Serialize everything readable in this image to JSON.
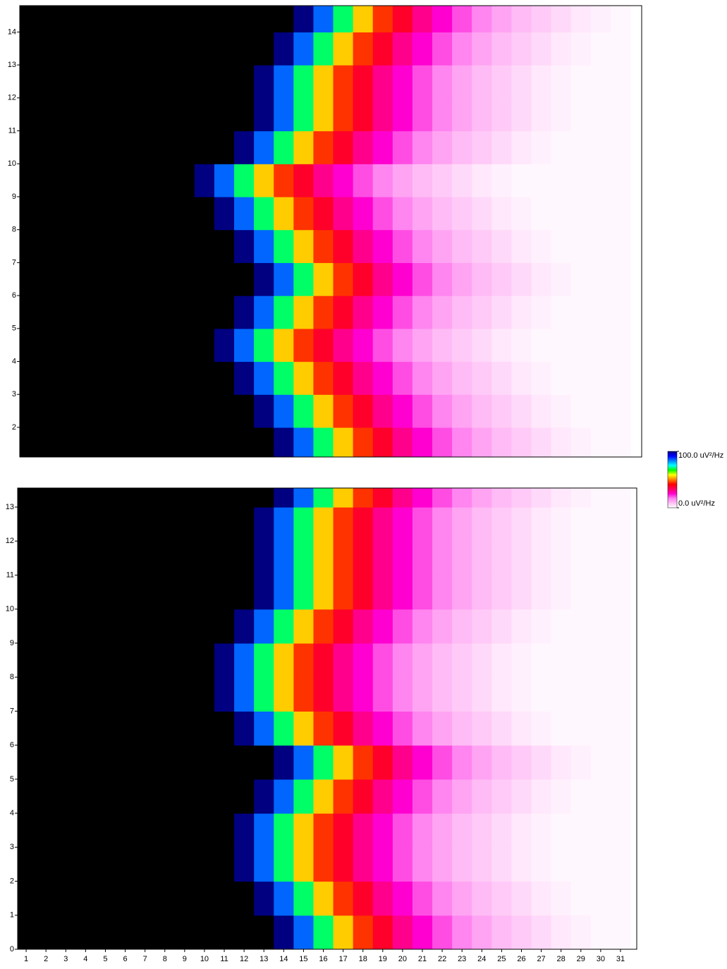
{
  "chart_data": [
    {
      "type": "heatmap",
      "x": [
        1,
        2,
        3,
        4,
        5,
        6,
        7,
        8,
        9,
        10,
        11,
        12,
        13,
        14,
        15,
        16,
        17,
        18,
        19,
        20,
        21,
        22,
        23,
        24,
        25,
        26,
        27,
        28,
        29,
        30,
        31
      ],
      "y": [
        1.5,
        2.5,
        3.5,
        4.5,
        5.5,
        6.5,
        7.5,
        8.5,
        9.5,
        10.5,
        11.5,
        12.5,
        13.5,
        14.5
      ],
      "z": [
        [
          150,
          150,
          150,
          150,
          150,
          150,
          150,
          150,
          150,
          150,
          150,
          150,
          150,
          100,
          85,
          70,
          55,
          45,
          38,
          30,
          25,
          20,
          16,
          12,
          9,
          7,
          5,
          3,
          2,
          1,
          1
        ],
        [
          150,
          150,
          150,
          150,
          150,
          150,
          150,
          150,
          150,
          150,
          150,
          150,
          100,
          85,
          70,
          55,
          45,
          38,
          30,
          25,
          20,
          16,
          12,
          9,
          7,
          5,
          3,
          2,
          1,
          1,
          1
        ],
        [
          150,
          150,
          150,
          150,
          150,
          150,
          150,
          150,
          150,
          150,
          150,
          100,
          85,
          70,
          55,
          45,
          38,
          30,
          25,
          20,
          16,
          12,
          9,
          7,
          5,
          3,
          2,
          1,
          1,
          1,
          1
        ],
        [
          150,
          150,
          150,
          150,
          150,
          150,
          150,
          150,
          150,
          150,
          100,
          85,
          70,
          55,
          45,
          38,
          30,
          25,
          20,
          16,
          12,
          9,
          7,
          5,
          3,
          2,
          1,
          1,
          1,
          1,
          1
        ],
        [
          150,
          150,
          150,
          150,
          150,
          150,
          150,
          150,
          150,
          150,
          150,
          100,
          85,
          70,
          55,
          45,
          38,
          30,
          25,
          20,
          16,
          12,
          9,
          7,
          5,
          3,
          2,
          1,
          1,
          1,
          1
        ],
        [
          150,
          150,
          150,
          150,
          150,
          150,
          150,
          150,
          150,
          150,
          150,
          150,
          100,
          85,
          70,
          55,
          45,
          38,
          30,
          25,
          20,
          16,
          12,
          9,
          7,
          5,
          3,
          2,
          1,
          1,
          1
        ],
        [
          150,
          150,
          150,
          150,
          150,
          150,
          150,
          150,
          150,
          150,
          150,
          100,
          85,
          70,
          55,
          45,
          38,
          30,
          25,
          20,
          16,
          12,
          9,
          7,
          5,
          3,
          2,
          1,
          1,
          1,
          1
        ],
        [
          150,
          150,
          150,
          150,
          150,
          150,
          150,
          150,
          150,
          150,
          100,
          85,
          70,
          55,
          45,
          38,
          30,
          25,
          20,
          16,
          12,
          9,
          7,
          5,
          3,
          2,
          1,
          1,
          1,
          1,
          1
        ],
        [
          150,
          150,
          150,
          150,
          150,
          150,
          150,
          150,
          150,
          100,
          85,
          70,
          55,
          45,
          38,
          30,
          25,
          20,
          16,
          12,
          9,
          7,
          5,
          3,
          2,
          1,
          1,
          1,
          1,
          1,
          1
        ],
        [
          150,
          150,
          150,
          150,
          150,
          150,
          150,
          150,
          150,
          150,
          150,
          100,
          85,
          70,
          55,
          45,
          38,
          30,
          25,
          20,
          16,
          12,
          9,
          7,
          5,
          3,
          2,
          1,
          1,
          1,
          1
        ],
        [
          150,
          150,
          150,
          150,
          150,
          150,
          150,
          150,
          150,
          150,
          150,
          150,
          100,
          85,
          70,
          55,
          45,
          38,
          30,
          25,
          20,
          16,
          12,
          9,
          7,
          5,
          3,
          2,
          1,
          1,
          1
        ],
        [
          150,
          150,
          150,
          150,
          150,
          150,
          150,
          150,
          150,
          150,
          150,
          150,
          100,
          85,
          70,
          55,
          45,
          38,
          30,
          25,
          20,
          16,
          12,
          9,
          7,
          5,
          3,
          2,
          1,
          1,
          1
        ],
        [
          150,
          150,
          150,
          150,
          150,
          150,
          150,
          150,
          150,
          150,
          150,
          150,
          150,
          100,
          85,
          70,
          55,
          45,
          38,
          30,
          25,
          20,
          16,
          12,
          9,
          7,
          5,
          3,
          2,
          1,
          1
        ],
        [
          150,
          150,
          150,
          150,
          150,
          150,
          150,
          150,
          150,
          150,
          150,
          150,
          150,
          150,
          100,
          85,
          70,
          55,
          45,
          38,
          30,
          25,
          20,
          16,
          12,
          9,
          7,
          5,
          3,
          2,
          1
        ]
      ],
      "xlim": [
        0.68,
        32.07
      ],
      "ylim": [
        1.1,
        14.8
      ],
      "yticks": [
        2,
        3,
        4,
        5,
        6,
        7,
        8,
        9,
        10,
        11,
        12,
        13,
        14
      ]
    },
    {
      "type": "heatmap",
      "x": [
        1,
        2,
        3,
        4,
        5,
        6,
        7,
        8,
        9,
        10,
        11,
        12,
        13,
        14,
        15,
        16,
        17,
        18,
        19,
        20,
        21,
        22,
        23,
        24,
        25,
        26,
        27,
        28,
        29,
        30,
        31
      ],
      "y": [
        0.5,
        1.5,
        2.5,
        3.5,
        4.5,
        5.5,
        6.5,
        7.5,
        8.5,
        9.5,
        10.5,
        11.5,
        12.5,
        13.5
      ],
      "z": [
        [
          150,
          150,
          150,
          150,
          150,
          150,
          150,
          150,
          150,
          150,
          150,
          150,
          150,
          100,
          85,
          70,
          55,
          45,
          38,
          30,
          25,
          20,
          16,
          12,
          9,
          7,
          5,
          3,
          2,
          1,
          1
        ],
        [
          150,
          150,
          150,
          150,
          150,
          150,
          150,
          150,
          150,
          150,
          150,
          150,
          100,
          85,
          70,
          55,
          45,
          38,
          30,
          25,
          20,
          16,
          12,
          9,
          7,
          5,
          3,
          2,
          1,
          1,
          1
        ],
        [
          150,
          150,
          150,
          150,
          150,
          150,
          150,
          150,
          150,
          150,
          150,
          100,
          85,
          70,
          55,
          45,
          38,
          30,
          25,
          20,
          16,
          12,
          9,
          7,
          5,
          3,
          2,
          1,
          1,
          1,
          1
        ],
        [
          150,
          150,
          150,
          150,
          150,
          150,
          150,
          150,
          150,
          150,
          150,
          100,
          85,
          70,
          55,
          45,
          38,
          30,
          25,
          20,
          16,
          12,
          9,
          7,
          5,
          3,
          2,
          1,
          1,
          1,
          1
        ],
        [
          150,
          150,
          150,
          150,
          150,
          150,
          150,
          150,
          150,
          150,
          150,
          150,
          100,
          85,
          70,
          55,
          45,
          38,
          30,
          25,
          20,
          16,
          12,
          9,
          7,
          5,
          3,
          2,
          1,
          1,
          1
        ],
        [
          150,
          150,
          150,
          150,
          150,
          150,
          150,
          150,
          150,
          150,
          150,
          150,
          150,
          100,
          85,
          70,
          55,
          45,
          38,
          30,
          25,
          20,
          16,
          12,
          9,
          7,
          5,
          3,
          2,
          1,
          1
        ],
        [
          150,
          150,
          150,
          150,
          150,
          150,
          150,
          150,
          150,
          150,
          150,
          100,
          85,
          70,
          55,
          45,
          38,
          30,
          25,
          20,
          16,
          12,
          9,
          7,
          5,
          3,
          2,
          1,
          1,
          1,
          1
        ],
        [
          150,
          150,
          150,
          150,
          150,
          150,
          150,
          150,
          150,
          150,
          100,
          85,
          70,
          55,
          45,
          38,
          30,
          25,
          20,
          16,
          12,
          9,
          7,
          5,
          3,
          2,
          1,
          1,
          1,
          1,
          1
        ],
        [
          150,
          150,
          150,
          150,
          150,
          150,
          150,
          150,
          150,
          150,
          100,
          85,
          70,
          55,
          45,
          38,
          30,
          25,
          20,
          16,
          12,
          9,
          7,
          5,
          3,
          2,
          1,
          1,
          1,
          1,
          1
        ],
        [
          150,
          150,
          150,
          150,
          150,
          150,
          150,
          150,
          150,
          150,
          150,
          100,
          85,
          70,
          55,
          45,
          38,
          30,
          25,
          20,
          16,
          12,
          9,
          7,
          5,
          3,
          2,
          1,
          1,
          1,
          1
        ],
        [
          150,
          150,
          150,
          150,
          150,
          150,
          150,
          150,
          150,
          150,
          150,
          150,
          100,
          85,
          70,
          55,
          45,
          38,
          30,
          25,
          20,
          16,
          12,
          9,
          7,
          5,
          3,
          2,
          1,
          1,
          1
        ],
        [
          150,
          150,
          150,
          150,
          150,
          150,
          150,
          150,
          150,
          150,
          150,
          150,
          100,
          85,
          70,
          55,
          45,
          38,
          30,
          25,
          20,
          16,
          12,
          9,
          7,
          5,
          3,
          2,
          1,
          1,
          1
        ],
        [
          150,
          150,
          150,
          150,
          150,
          150,
          150,
          150,
          150,
          150,
          150,
          150,
          100,
          85,
          70,
          55,
          45,
          38,
          30,
          25,
          20,
          16,
          12,
          9,
          7,
          5,
          3,
          2,
          1,
          1,
          1
        ],
        [
          150,
          150,
          150,
          150,
          150,
          150,
          150,
          150,
          150,
          150,
          150,
          150,
          150,
          100,
          85,
          70,
          55,
          45,
          38,
          30,
          25,
          20,
          16,
          12,
          9,
          7,
          5,
          3,
          2,
          1,
          1
        ]
      ],
      "xlim": [
        0.57,
        31.82
      ],
      "ylim": [
        0,
        13.56
      ],
      "yticks": [
        0,
        1,
        2,
        3,
        4,
        5,
        6,
        7,
        8,
        9,
        10,
        11,
        12,
        13
      ],
      "xticks": [
        1,
        2,
        3,
        4,
        5,
        6,
        7,
        8,
        9,
        10,
        11,
        12,
        13,
        14,
        15,
        16,
        17,
        18,
        19,
        20,
        21,
        22,
        23,
        24,
        25,
        26,
        27,
        28,
        29,
        30,
        31
      ]
    }
  ],
  "colorbar": {
    "zlim": [
      0,
      100
    ],
    "zticks": [
      {
        "value": 0,
        "label": "0.0 uV²/Hz"
      },
      {
        "value": 100,
        "label": "100.0 uV²/Hz"
      }
    ],
    "colorscale": [
      "#ffffff",
      "#ffc0f5",
      "#ff80f0",
      "#ff00d0",
      "#ff0060",
      "#ff0000",
      "#ff8000",
      "#ffff00",
      "#00ff00",
      "#00ffff",
      "#0080ff",
      "#0000ff",
      "#000080"
    ],
    "overflow_color": "#000000"
  }
}
